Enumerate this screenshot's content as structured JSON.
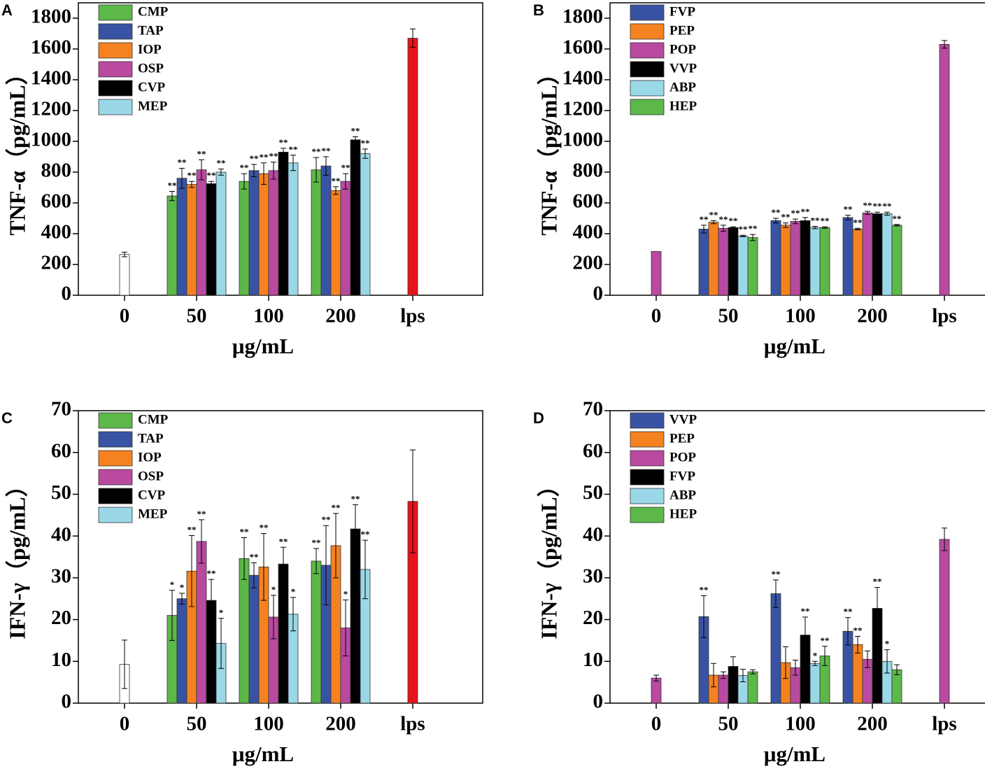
{
  "chart_data": [
    {
      "type": "bar",
      "panel_label": "A",
      "ylabel": "TNF-α（pg/mL）",
      "xlabel": "μg/mL",
      "categories": [
        "0",
        "50",
        "100",
        "200",
        "lps"
      ],
      "ylim": [
        0,
        1900
      ],
      "yticks": [
        0,
        200,
        400,
        600,
        800,
        1000,
        1200,
        1400,
        1600,
        1800
      ],
      "controls": {
        "values": [
          265,
          null,
          null,
          null,
          1670
        ],
        "errors": [
          15,
          null,
          null,
          null,
          60
        ],
        "colors": [
          "#ffffff",
          null,
          null,
          null,
          "#e8141b"
        ]
      },
      "series": [
        {
          "name": "CMP",
          "color": "#5cb848",
          "values": [
            null,
            645,
            740,
            815,
            null
          ],
          "errors": [
            null,
            30,
            50,
            80,
            null
          ],
          "annotations": [
            null,
            "**",
            "**",
            "**",
            null
          ]
        },
        {
          "name": "TAP",
          "color": "#3953a4",
          "values": [
            null,
            760,
            810,
            840,
            null
          ],
          "errors": [
            null,
            65,
            40,
            60,
            null
          ],
          "annotations": [
            null,
            "**",
            "**",
            "**",
            null
          ]
        },
        {
          "name": "IOP",
          "color": "#f58220",
          "values": [
            null,
            720,
            790,
            680,
            null
          ],
          "errors": [
            null,
            20,
            70,
            25,
            null
          ],
          "annotations": [
            null,
            "**",
            "**",
            "**",
            null
          ]
        },
        {
          "name": "OSP",
          "color": "#b94aa0",
          "values": [
            null,
            815,
            810,
            740,
            null
          ],
          "errors": [
            null,
            65,
            55,
            50,
            null
          ],
          "annotations": [
            null,
            "**",
            "**",
            "**",
            null
          ]
        },
        {
          "name": "CVP",
          "color": "#000000",
          "values": [
            null,
            725,
            930,
            1010,
            null
          ],
          "errors": [
            null,
            15,
            25,
            20,
            null
          ],
          "annotations": [
            null,
            "**",
            "**",
            "**",
            null
          ]
        },
        {
          "name": "MEP",
          "color": "#9ad8e8",
          "values": [
            null,
            800,
            860,
            920,
            null
          ],
          "errors": [
            null,
            20,
            50,
            30,
            null
          ],
          "annotations": [
            null,
            "**",
            "**",
            "**",
            null
          ]
        }
      ]
    },
    {
      "type": "bar",
      "panel_label": "B",
      "ylabel": "TNF-α（pg/mL）",
      "xlabel": "μg/mL",
      "categories": [
        "0",
        "50",
        "100",
        "200",
        "lps"
      ],
      "ylim": [
        0,
        1900
      ],
      "yticks": [
        0,
        200,
        400,
        600,
        800,
        1000,
        1200,
        1400,
        1600,
        1800
      ],
      "controls": {
        "values": [
          285,
          null,
          null,
          null,
          1630
        ],
        "errors": [
          0,
          null,
          null,
          null,
          25
        ],
        "colors": [
          "#b94aa0",
          null,
          null,
          null,
          "#b94aa0"
        ]
      },
      "series": [
        {
          "name": "FVP",
          "color": "#3953a4",
          "values": [
            null,
            430,
            485,
            505,
            null
          ],
          "errors": [
            null,
            25,
            15,
            15,
            null
          ],
          "annotations": [
            null,
            "**",
            "**",
            "**",
            null
          ]
        },
        {
          "name": "PEP",
          "color": "#f58220",
          "values": [
            null,
            475,
            455,
            430,
            null
          ],
          "errors": [
            null,
            10,
            15,
            5,
            null
          ],
          "annotations": [
            null,
            "**",
            "**",
            "**",
            null
          ]
        },
        {
          "name": "POP",
          "color": "#b94aa0",
          "values": [
            null,
            435,
            480,
            535,
            null
          ],
          "errors": [
            null,
            20,
            15,
            10,
            null
          ],
          "annotations": [
            null,
            "**",
            "**",
            "**",
            null
          ]
        },
        {
          "name": "VVP",
          "color": "#000000",
          "values": [
            null,
            440,
            485,
            530,
            null
          ],
          "errors": [
            null,
            5,
            20,
            10,
            null
          ],
          "annotations": [
            null,
            "**",
            "**",
            "**",
            null
          ]
        },
        {
          "name": "ABP",
          "color": "#9ad8e8",
          "values": [
            null,
            385,
            440,
            530,
            null
          ],
          "errors": [
            null,
            5,
            8,
            10,
            null
          ],
          "annotations": [
            null,
            "**",
            "**",
            "**",
            null
          ]
        },
        {
          "name": "HEP",
          "color": "#5cb848",
          "values": [
            null,
            375,
            440,
            455,
            null
          ],
          "errors": [
            null,
            20,
            5,
            5,
            null
          ],
          "annotations": [
            null,
            "**",
            "**",
            "**",
            null
          ]
        }
      ]
    },
    {
      "type": "bar",
      "panel_label": "C",
      "ylabel": "IFN-γ（pg/mL）",
      "xlabel": "μg/mL",
      "categories": [
        "0",
        "50",
        "100",
        "200",
        "lps"
      ],
      "ylim": [
        0,
        70
      ],
      "yticks": [
        0,
        10,
        20,
        30,
        40,
        50,
        60,
        70
      ],
      "controls": {
        "values": [
          9.3,
          null,
          null,
          null,
          48.3
        ],
        "errors": [
          5.8,
          null,
          null,
          null,
          12.3
        ],
        "colors": [
          "#ffffff",
          null,
          null,
          null,
          "#e8141b"
        ]
      },
      "series": [
        {
          "name": "CMP",
          "color": "#5cb848",
          "values": [
            null,
            21,
            34.6,
            34,
            null
          ],
          "errors": [
            null,
            6,
            5,
            3,
            null
          ],
          "annotations": [
            null,
            "*",
            "**",
            "**",
            null
          ]
        },
        {
          "name": "TAP",
          "color": "#3953a4",
          "values": [
            null,
            25,
            30.6,
            33,
            null
          ],
          "errors": [
            null,
            1.3,
            3,
            9.5,
            null
          ],
          "annotations": [
            null,
            "*",
            "**",
            "**",
            null
          ]
        },
        {
          "name": "IOP",
          "color": "#f58220",
          "values": [
            null,
            31.6,
            32.6,
            37.7,
            null
          ],
          "errors": [
            null,
            8.5,
            8,
            7.7,
            null
          ],
          "annotations": [
            null,
            "**",
            "**",
            "**",
            null
          ]
        },
        {
          "name": "OSP",
          "color": "#b94aa0",
          "values": [
            null,
            38.7,
            20.6,
            18,
            null
          ],
          "errors": [
            null,
            5.2,
            5.2,
            6.7,
            null
          ],
          "annotations": [
            null,
            "**",
            "*",
            "*",
            null
          ]
        },
        {
          "name": "CVP",
          "color": "#000000",
          "values": [
            null,
            24.6,
            33.3,
            41.7,
            null
          ],
          "errors": [
            null,
            5,
            4,
            5.8,
            null
          ],
          "annotations": [
            null,
            "**",
            "**",
            "**",
            null
          ]
        },
        {
          "name": "MEP",
          "color": "#9ad8e8",
          "values": [
            null,
            14.3,
            21.3,
            32,
            null
          ],
          "errors": [
            null,
            6,
            4,
            7,
            null
          ],
          "annotations": [
            null,
            "*",
            "*",
            "**",
            null
          ]
        }
      ]
    },
    {
      "type": "bar",
      "panel_label": "D",
      "ylabel": "IFN-γ（pg/mL）",
      "xlabel": "μg/mL",
      "categories": [
        "0",
        "50",
        "100",
        "200",
        "lps"
      ],
      "ylim": [
        0,
        70
      ],
      "yticks": [
        0,
        10,
        20,
        30,
        40,
        50,
        60,
        70
      ],
      "controls": {
        "values": [
          6,
          null,
          null,
          null,
          39.2
        ],
        "errors": [
          0.7,
          null,
          null,
          null,
          2.7
        ],
        "colors": [
          "#b94aa0",
          null,
          null,
          null,
          "#b94aa0"
        ]
      },
      "series": [
        {
          "name": "VVP",
          "color": "#3953a4",
          "values": [
            null,
            20.7,
            26.2,
            17.2,
            null
          ],
          "errors": [
            null,
            5,
            3.3,
            3.3,
            null
          ],
          "annotations": [
            null,
            "**",
            "**",
            "**",
            null
          ]
        },
        {
          "name": "PEP",
          "color": "#f58220",
          "values": [
            null,
            6.7,
            9.7,
            14,
            null
          ],
          "errors": [
            null,
            2.8,
            3.8,
            2,
            null
          ],
          "annotations": [
            null,
            null,
            null,
            "**",
            null
          ]
        },
        {
          "name": "POP",
          "color": "#b94aa0",
          "values": [
            null,
            6.7,
            8.5,
            10.5,
            null
          ],
          "errors": [
            null,
            0.8,
            1.8,
            2,
            null
          ],
          "annotations": [
            null,
            null,
            null,
            null,
            null
          ]
        },
        {
          "name": "FVP",
          "color": "#000000",
          "values": [
            null,
            8.8,
            16.3,
            22.7,
            null
          ],
          "errors": [
            null,
            2.3,
            4.3,
            5,
            null
          ],
          "annotations": [
            null,
            null,
            "**",
            "**",
            null
          ]
        },
        {
          "name": "ABP",
          "color": "#9ad8e8",
          "values": [
            null,
            6.6,
            9.5,
            10,
            null
          ],
          "errors": [
            null,
            1.5,
            0.5,
            2.8,
            null
          ],
          "annotations": [
            null,
            null,
            "*",
            "*",
            null
          ]
        },
        {
          "name": "HEP",
          "color": "#5cb848",
          "values": [
            null,
            7.5,
            11.3,
            8,
            null
          ],
          "errors": [
            null,
            0.5,
            2.3,
            1.2,
            null
          ],
          "annotations": [
            null,
            null,
            "**",
            null,
            null
          ]
        }
      ]
    }
  ]
}
